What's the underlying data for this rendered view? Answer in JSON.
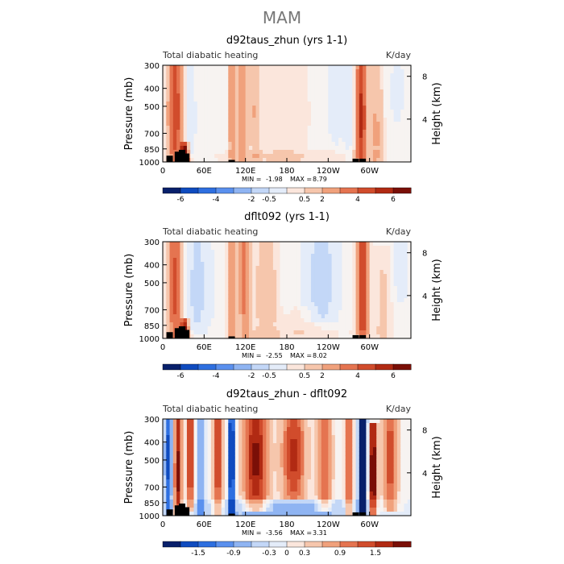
{
  "page_title": "MAM",
  "colors": {
    "neg": [
      "#08206b",
      "#0f4bbf",
      "#2e6fe0",
      "#5a90ee",
      "#8fb4f2",
      "#c3d7f7",
      "#e4ecf9"
    ],
    "pos": [
      "#fbe6dc",
      "#f6c6ac",
      "#f0a17c",
      "#e57450",
      "#d14c2c",
      "#b12a13",
      "#7a0f07"
    ],
    "zero": "#f7f3f1",
    "terrain": "#000000"
  },
  "chart_data": [
    {
      "type": "heatmap",
      "title": "d92taus_zhun (yrs 1-1)",
      "left_label": "Total diabatic heating",
      "right_label": "K/day",
      "ylabel": "Pressure (mb)",
      "y2label": "Height (km)",
      "yticks": [
        "300",
        "400",
        "500",
        "700",
        "850",
        "1000"
      ],
      "y2ticks": [
        "8",
        "4"
      ],
      "xticks": [
        "0",
        "60E",
        "120E",
        "180",
        "120W",
        "60W"
      ],
      "ylim": [
        1000,
        300
      ],
      "xlim": [
        0,
        360
      ],
      "min_label": "MIN =",
      "min_value": "-1.98",
      "max_label": "MAX =",
      "max_value": "8.79",
      "colorbar_labels": [
        "-6",
        "-4",
        "-2",
        "-0.5",
        "0.5",
        "2",
        "4",
        "6"
      ],
      "scale": 8,
      "terrain": [
        [
          10,
          1000,
          925
        ],
        [
          22,
          1000,
          880
        ],
        [
          28,
          1000,
          860
        ],
        [
          34,
          1000,
          900
        ],
        [
          100,
          1000,
          975
        ],
        [
          280,
          1000,
          960
        ],
        [
          290,
          1000,
          960
        ]
      ],
      "features": [
        {
          "lon": 18,
          "width": 16,
          "p0": 1000,
          "p1": 300,
          "amp": 5.5,
          "center": 550
        },
        {
          "lon": 32,
          "width": 8,
          "p0": 1000,
          "p1": 820,
          "amp": 8.5,
          "center": 930
        },
        {
          "lon": 40,
          "width": 10,
          "p0": 900,
          "p1": 300,
          "amp": -1.3,
          "center": 600
        },
        {
          "lon": 100,
          "width": 6,
          "p0": 1000,
          "p1": 300,
          "amp": 3.5,
          "center": 500
        },
        {
          "lon": 115,
          "width": 14,
          "p0": 1000,
          "p1": 300,
          "amp": 3.5,
          "center": 520
        },
        {
          "lon": 135,
          "width": 8,
          "p0": 1000,
          "p1": 300,
          "amp": 2.2,
          "center": 520
        },
        {
          "lon": 175,
          "width": 60,
          "p0": 950,
          "p1": 300,
          "amp": 0.9,
          "center": 550
        },
        {
          "lon": 250,
          "width": 25,
          "p0": 800,
          "p1": 300,
          "amp": -0.7,
          "center": 450
        },
        {
          "lon": 270,
          "width": 8,
          "p0": 1000,
          "p1": 300,
          "amp": -0.8,
          "center": 500
        },
        {
          "lon": 288,
          "width": 12,
          "p0": 1000,
          "p1": 300,
          "amp": 6.0,
          "center": 580
        },
        {
          "lon": 310,
          "width": 14,
          "p0": 1000,
          "p1": 300,
          "amp": 2.5,
          "center": 700
        },
        {
          "lon": 340,
          "width": 20,
          "p0": 600,
          "p1": 300,
          "amp": -0.6,
          "center": 420
        },
        {
          "lon": 180,
          "width": 180,
          "p0": 1000,
          "p1": 900,
          "amp": 0.8,
          "center": 950
        }
      ]
    },
    {
      "type": "heatmap",
      "title": "dflt092 (yrs 1-1)",
      "left_label": "Total diabatic heating",
      "right_label": "K/day",
      "ylabel": "Pressure (mb)",
      "y2label": "Height (km)",
      "yticks": [
        "300",
        "400",
        "500",
        "700",
        "850",
        "1000"
      ],
      "y2ticks": [
        "8",
        "4"
      ],
      "xticks": [
        "0",
        "60E",
        "120E",
        "180",
        "120W",
        "60W"
      ],
      "ylim": [
        1000,
        300
      ],
      "xlim": [
        0,
        360
      ],
      "min_label": "MIN =",
      "min_value": "-2.55",
      "max_label": "MAX =",
      "max_value": "8.02",
      "colorbar_labels": [
        "-6",
        "-4",
        "-2",
        "-0.5",
        "0.5",
        "2",
        "4",
        "6"
      ],
      "scale": 8,
      "terrain": [
        [
          10,
          1000,
          925
        ],
        [
          22,
          1000,
          880
        ],
        [
          28,
          1000,
          860
        ],
        [
          34,
          1000,
          900
        ],
        [
          100,
          1000,
          975
        ],
        [
          280,
          1000,
          960
        ],
        [
          290,
          1000,
          960
        ]
      ],
      "features": [
        {
          "lon": 18,
          "width": 16,
          "p0": 1000,
          "p1": 300,
          "amp": 5.0,
          "center": 550
        },
        {
          "lon": 32,
          "width": 8,
          "p0": 1000,
          "p1": 820,
          "amp": 8.0,
          "center": 930
        },
        {
          "lon": 50,
          "width": 30,
          "p0": 900,
          "p1": 300,
          "amp": -1.4,
          "center": 550
        },
        {
          "lon": 100,
          "width": 8,
          "p0": 1000,
          "p1": 300,
          "amp": 3.8,
          "center": 500
        },
        {
          "lon": 118,
          "width": 12,
          "p0": 1000,
          "p1": 300,
          "amp": 3.8,
          "center": 500
        },
        {
          "lon": 150,
          "width": 25,
          "p0": 1000,
          "p1": 300,
          "amp": 2.0,
          "center": 600
        },
        {
          "lon": 230,
          "width": 35,
          "p0": 800,
          "p1": 300,
          "amp": -1.6,
          "center": 500
        },
        {
          "lon": 200,
          "width": 30,
          "p0": 950,
          "p1": 700,
          "amp": 0.8,
          "center": 820
        },
        {
          "lon": 290,
          "width": 12,
          "p0": 1000,
          "p1": 300,
          "amp": 6.0,
          "center": 560
        },
        {
          "lon": 320,
          "width": 18,
          "p0": 1000,
          "p1": 350,
          "amp": 1.5,
          "center": 750
        },
        {
          "lon": 345,
          "width": 15,
          "p0": 600,
          "p1": 300,
          "amp": -1.2,
          "center": 400
        },
        {
          "lon": 180,
          "width": 180,
          "p0": 1000,
          "p1": 900,
          "amp": 0.6,
          "center": 950
        }
      ]
    },
    {
      "type": "heatmap",
      "title": "d92taus_zhun - dflt092",
      "left_label": "Total diabatic heating",
      "right_label": "K/day",
      "ylabel": "Pressure (mb)",
      "y2label": "Height (km)",
      "yticks": [
        "300",
        "400",
        "500",
        "700",
        "850",
        "1000"
      ],
      "y2ticks": [
        "8",
        "4"
      ],
      "xticks": [
        "0",
        "60E",
        "120E",
        "180",
        "120W",
        "60W"
      ],
      "ylim": [
        1000,
        300
      ],
      "xlim": [
        0,
        360
      ],
      "min_label": "MIN =",
      "min_value": "-3.56",
      "max_label": "MAX =",
      "max_value": "3.31",
      "colorbar_labels": [
        "-1.5",
        "-0.9",
        "-0.3",
        "0",
        "0.3",
        "0.9",
        "1.5"
      ],
      "scale": 2,
      "terrain": [
        [
          10,
          1000,
          925
        ],
        [
          22,
          1000,
          880
        ],
        [
          28,
          1000,
          860
        ],
        [
          34,
          1000,
          900
        ],
        [
          100,
          1000,
          975
        ],
        [
          280,
          1000,
          960
        ],
        [
          290,
          1000,
          960
        ]
      ],
      "features": [
        {
          "lon": 8,
          "width": 8,
          "p0": 1000,
          "p1": 300,
          "amp": -1.5,
          "center": 500
        },
        {
          "lon": 22,
          "width": 8,
          "p0": 1000,
          "p1": 300,
          "amp": 1.8,
          "center": 600
        },
        {
          "lon": 40,
          "width": 6,
          "p0": 900,
          "p1": 300,
          "amp": 1.8,
          "center": 500
        },
        {
          "lon": 55,
          "width": 8,
          "p0": 950,
          "p1": 300,
          "amp": -1.0,
          "center": 600
        },
        {
          "lon": 80,
          "width": 10,
          "p0": 1000,
          "p1": 300,
          "amp": 1.4,
          "center": 500
        },
        {
          "lon": 100,
          "width": 6,
          "p0": 1000,
          "p1": 300,
          "amp": -2.2,
          "center": 500
        },
        {
          "lon": 135,
          "width": 25,
          "p0": 900,
          "p1": 300,
          "amp": 1.8,
          "center": 500
        },
        {
          "lon": 190,
          "width": 25,
          "p0": 800,
          "p1": 300,
          "amp": 1.5,
          "center": 480
        },
        {
          "lon": 235,
          "width": 15,
          "p0": 900,
          "p1": 300,
          "amp": 1.2,
          "center": 500
        },
        {
          "lon": 270,
          "width": 8,
          "p0": 1000,
          "p1": 300,
          "amp": 1.3,
          "center": 600
        },
        {
          "lon": 290,
          "width": 8,
          "p0": 1000,
          "p1": 300,
          "amp": -3.0,
          "center": 500
        },
        {
          "lon": 305,
          "width": 8,
          "p0": 1000,
          "p1": 350,
          "amp": 2.2,
          "center": 600
        },
        {
          "lon": 330,
          "width": 15,
          "p0": 900,
          "p1": 300,
          "amp": 1.3,
          "center": 520
        },
        {
          "lon": 180,
          "width": 180,
          "p0": 1000,
          "p1": 850,
          "amp": -0.8,
          "center": 930
        }
      ]
    }
  ]
}
